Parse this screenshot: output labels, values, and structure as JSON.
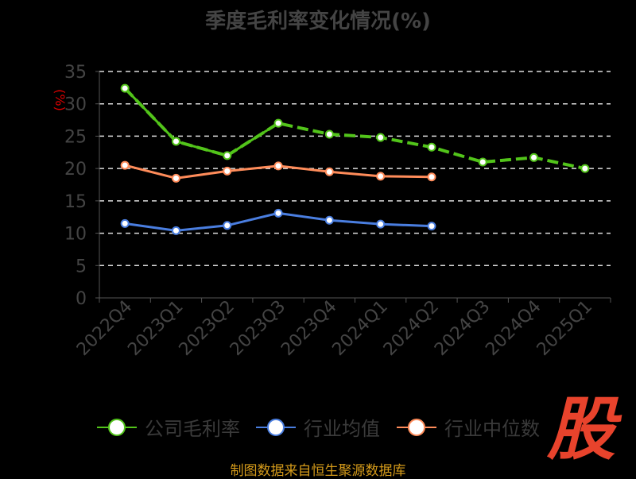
{
  "chart_data": {
    "type": "line",
    "title": "季度毛利率变化情况(%)",
    "ylabel": "(%)",
    "ylim": [
      0,
      35
    ],
    "yticks": [
      0,
      5,
      10,
      15,
      20,
      25,
      30,
      35
    ],
    "categories": [
      "2022Q4",
      "2023Q1",
      "2023Q2",
      "2023Q3",
      "2023Q4",
      "2024Q1",
      "2024Q2",
      "2024Q3",
      "2024Q4",
      "2025Q1"
    ],
    "grid": true,
    "legend_position": "bottom",
    "series": [
      {
        "name": "公司毛利率",
        "color": "#52c41a",
        "values": [
          32.4,
          24.2,
          22.0,
          27.0,
          25.3,
          24.8,
          23.3,
          21.0,
          21.7,
          20.0
        ]
      },
      {
        "name": "行业均值",
        "color": "#4a7ee0",
        "values": [
          11.5,
          10.4,
          11.2,
          13.1,
          12.0,
          11.4,
          11.1,
          null,
          null,
          null
        ]
      },
      {
        "name": "行业中位数",
        "color": "#ff8c5a",
        "values": [
          20.5,
          18.5,
          19.6,
          20.4,
          19.5,
          18.8,
          18.7,
          null,
          null,
          null
        ]
      }
    ]
  },
  "source": "制图数据来自恒生聚源数据库",
  "logo": "股"
}
